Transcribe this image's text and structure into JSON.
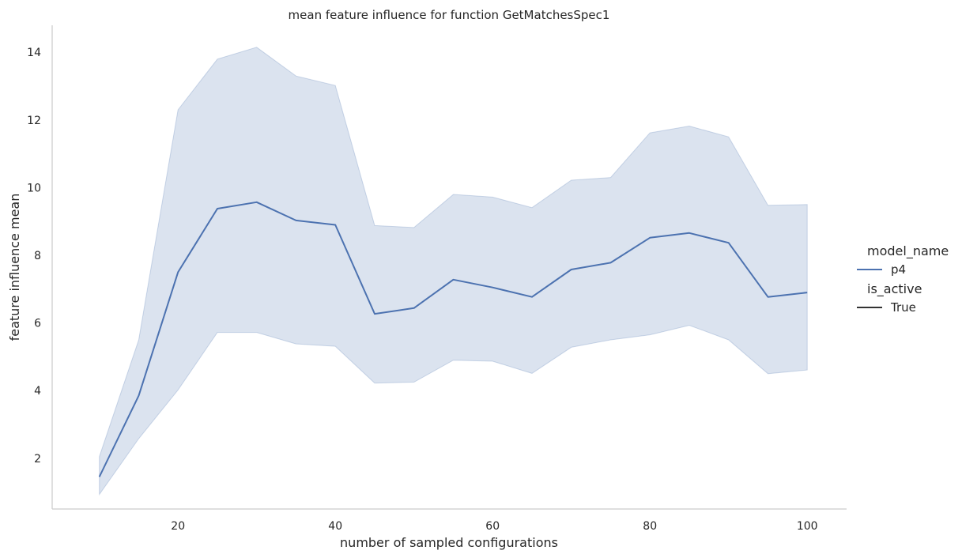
{
  "chart_data": {
    "type": "line",
    "title": "mean feature influence for function GetMatchesSpec1",
    "xlabel": "number of sampled configurations",
    "ylabel": "feature influence mean",
    "xlim": [
      4,
      105
    ],
    "ylim": [
      0.5,
      14.8
    ],
    "xticks": [
      20,
      40,
      60,
      80,
      100
    ],
    "yticks": [
      2,
      4,
      6,
      8,
      10,
      12,
      14
    ],
    "grid": false,
    "legend_position": "right",
    "legend": {
      "hue_title": "model_name",
      "style_title": "is_active",
      "entries": [
        {
          "label": "p4",
          "color": "#4c72b0",
          "kind": "hue"
        },
        {
          "label": "True",
          "color": "#333333",
          "kind": "style"
        }
      ]
    },
    "series": [
      {
        "name": "p4",
        "color": "#4c72b0",
        "x": [
          10,
          15,
          20,
          25,
          30,
          35,
          40,
          45,
          50,
          55,
          60,
          65,
          70,
          75,
          80,
          85,
          90,
          95,
          100
        ],
        "values": [
          1.45,
          3.85,
          7.5,
          9.38,
          9.57,
          9.03,
          8.9,
          6.27,
          6.44,
          7.28,
          7.05,
          6.77,
          7.58,
          7.78,
          8.52,
          8.66,
          8.37,
          6.77,
          6.9
        ],
        "ci_upper": [
          2.05,
          5.5,
          12.3,
          13.8,
          14.15,
          13.3,
          13.02,
          8.88,
          8.82,
          9.8,
          9.72,
          9.41,
          10.22,
          10.3,
          11.62,
          11.82,
          11.5,
          9.48,
          9.5
        ],
        "ci_lower": [
          0.93,
          2.58,
          4.02,
          5.72,
          5.72,
          5.38,
          5.31,
          4.22,
          4.25,
          4.9,
          4.87,
          4.51,
          5.28,
          5.5,
          5.65,
          5.93,
          5.5,
          4.5,
          4.61
        ]
      }
    ]
  }
}
